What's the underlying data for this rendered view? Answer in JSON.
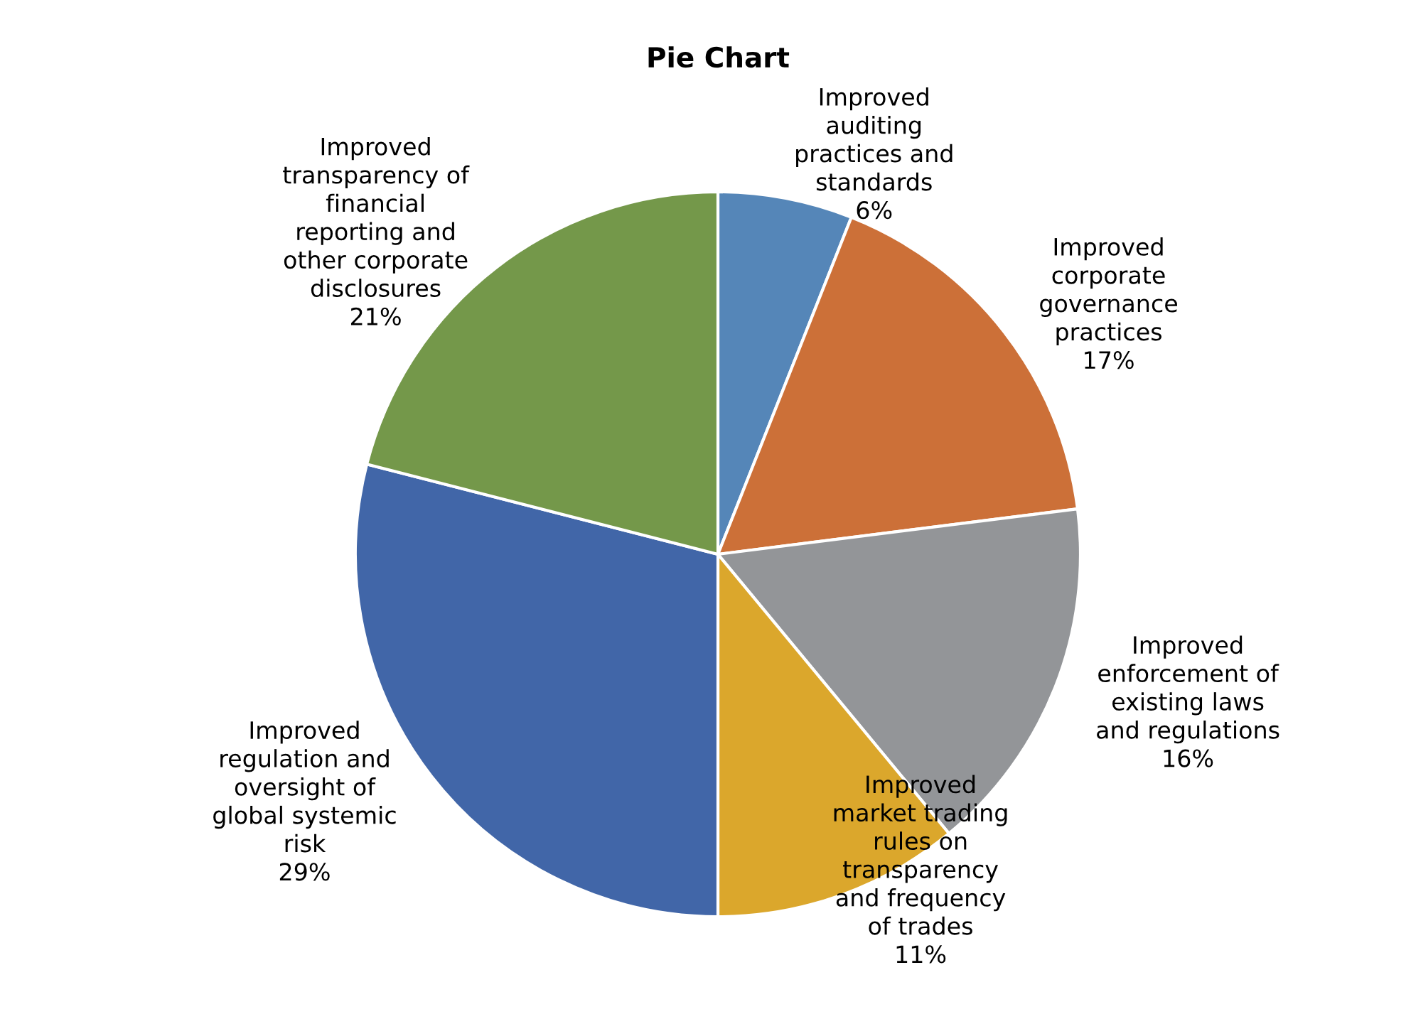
{
  "chart_data": {
    "type": "pie",
    "title": "Pie Chart",
    "categories": [
      "Improved\nauditing\npractices and\nstandards",
      "Improved\ncorporate\ngovernance\npractices",
      "Improved\nenforcement of\nexisting laws\nand regulations",
      "Improved\nmarket trading\nrules on\ntransparency\nand frequency\nof trades",
      "Improved\nregulation and\noversight of\nglobal systemic\nrisk",
      "Improved\ntransparency of\nfinancial\nreporting and\nother corporate\ndisclosures"
    ],
    "values": [
      6,
      17,
      16,
      11,
      29,
      21
    ],
    "colors": [
      "#5586b8",
      "#cc7038",
      "#939598",
      "#dba72c",
      "#4166a8",
      "#74984a"
    ],
    "value_labels": [
      "6%",
      "17%",
      "16%",
      "11%",
      "29%",
      "21%"
    ],
    "legend": false
  }
}
